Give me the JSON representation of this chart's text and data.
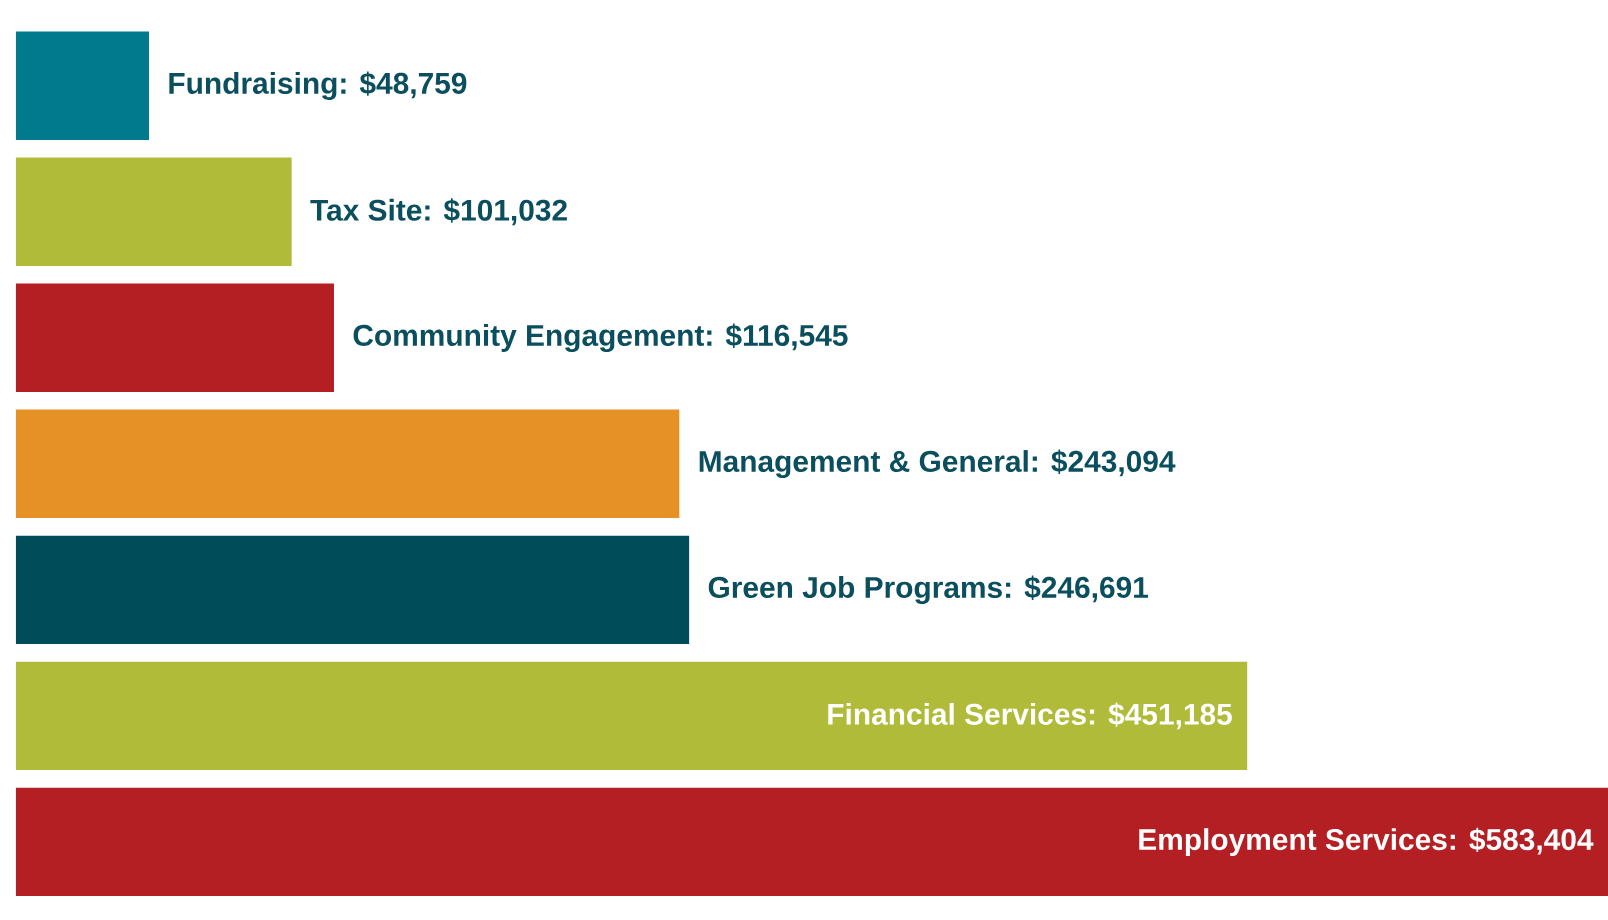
{
  "chart_data": {
    "type": "bar",
    "orientation": "horizontal",
    "categories": [
      null,
      null,
      null,
      null,
      null,
      null,
      null
    ],
    "values": [
      48759,
      101032,
      116545,
      243094,
      246691,
      451185,
      583404
    ],
    "value_labels": [
      "Fundraising: $48,759",
      "Tax Site: $101,032",
      "Community Engagement: $116,545",
      "Management & General: $243,094",
      "Green Job Programs: $246,691",
      "Financial Services: $451,185",
      "Employment Services: $583,404"
    ],
    "colors": [
      "#007a8c",
      "#b0bb3a",
      "#b41f24",
      "#e69126",
      "#004c59",
      "#b0bb3a",
      "#b41f24"
    ]
  }
}
